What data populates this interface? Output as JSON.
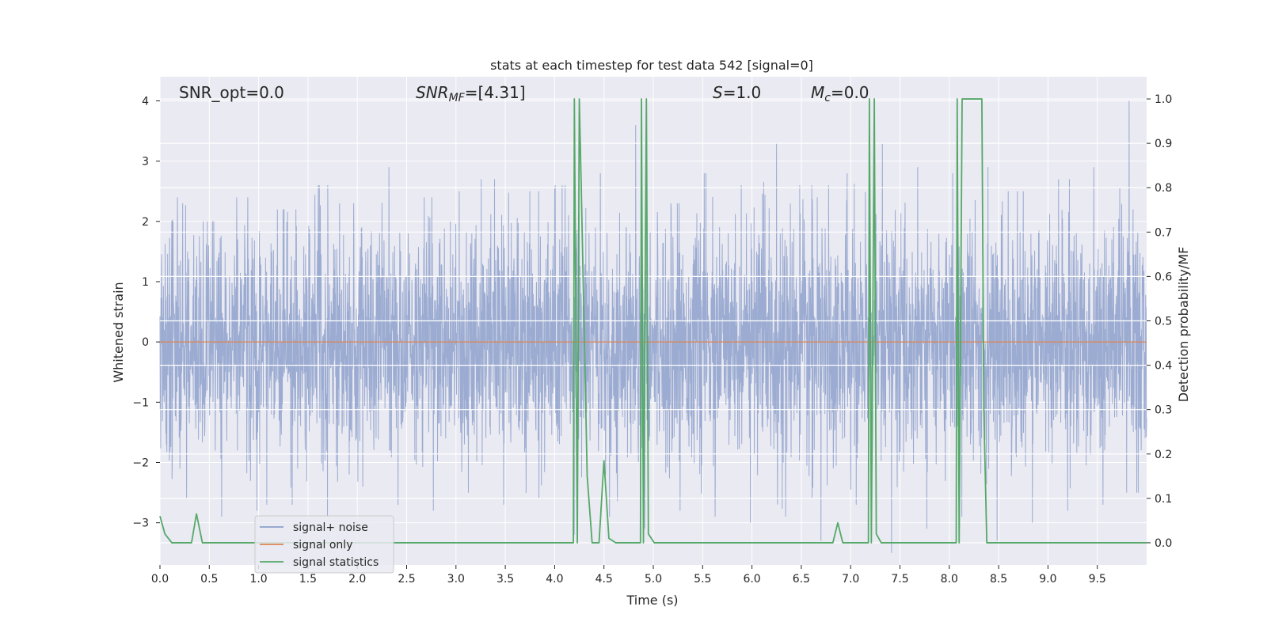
{
  "chart_data": {
    "type": "line",
    "title": "stats at each timestep for test data 542 [signal=0]",
    "xlabel": "Time (s)",
    "ylabel": "Whitened strain",
    "y2label": "Detection probability/MF",
    "xlim": [
      0,
      10
    ],
    "ylim": [
      -3.7,
      4.4
    ],
    "y2lim": [
      -0.05,
      1.05
    ],
    "xticks": [
      "0.0",
      "0.5",
      "1.0",
      "1.5",
      "2.0",
      "2.5",
      "3.0",
      "3.5",
      "4.0",
      "4.5",
      "5.0",
      "5.5",
      "6.0",
      "6.5",
      "7.0",
      "7.5",
      "8.0",
      "8.5",
      "9.0",
      "9.5"
    ],
    "yticks": [
      "−3",
      "−2",
      "−1",
      "0",
      "1",
      "2",
      "3",
      "4"
    ],
    "y2ticks": [
      "0.0",
      "0.1",
      "0.2",
      "0.3",
      "0.4",
      "0.5",
      "0.6",
      "0.7",
      "0.8",
      "0.9",
      "1.0"
    ],
    "grid": true,
    "legend_position": "lower-left",
    "annotations": {
      "snr_opt": "SNR_opt=0.0",
      "snr_mf_main": "SNR",
      "snr_mf_sub": "MF",
      "snr_mf_val": "=[4.31]",
      "s_main": "S",
      "s_val": "=1.0",
      "mc_main": "M",
      "mc_sub": "c",
      "mc_val": "=0.0"
    },
    "series": [
      {
        "name": "signal+ noise",
        "color": "#8da0cb",
        "axis": "left",
        "noise_std": 1.0,
        "peak_max": [
          2.4,
          2.0,
          2.4,
          2.2,
          2.6,
          2.3,
          2.9,
          2.4,
          2.5,
          2.7,
          2.5,
          2.6,
          2.8,
          3.6,
          2.3,
          2.8,
          2.6,
          3.3,
          2.6,
          2.8,
          3.3,
          2.9,
          2.8,
          2.9,
          2.5,
          2.7,
          2.9,
          4.0
        ],
        "trough_min": [
          -2.6,
          -2.9,
          -2.8,
          -2.7,
          -2.9,
          -2.4,
          -2.7,
          -2.8,
          -2.5,
          -2.7,
          -2.6,
          -3.2,
          -2.9,
          -3.1,
          -2.8,
          -2.9,
          -3.0,
          -2.9,
          -3.3,
          -2.7,
          -3.5,
          -3.1,
          -2.9,
          -3.3,
          -3.0,
          -2.8,
          -2.7,
          -2.5
        ]
      },
      {
        "name": "signal only",
        "color": "#dd8452",
        "axis": "left",
        "x": [
          0,
          10
        ],
        "y": [
          0,
          0
        ]
      },
      {
        "name": "signal statistics",
        "color": "#55a868",
        "axis": "right",
        "x": [
          0.0,
          0.05,
          0.12,
          0.32,
          0.37,
          0.43,
          4.19,
          4.2,
          4.23,
          4.25,
          4.27,
          4.33,
          4.38,
          4.45,
          4.5,
          4.55,
          4.62,
          4.87,
          4.88,
          4.9,
          4.93,
          4.95,
          5.01,
          5.06,
          6.82,
          6.87,
          6.92,
          7.18,
          7.19,
          7.21,
          7.24,
          7.26,
          7.31,
          7.34,
          8.07,
          8.08,
          8.1,
          8.13,
          8.33,
          8.35,
          8.38,
          10.0
        ],
        "y": [
          0.06,
          0.02,
          0.0,
          0.0,
          0.065,
          0.0,
          0.0,
          1.0,
          0.0,
          1.0,
          0.8,
          0.15,
          0.0,
          0.0,
          0.185,
          0.01,
          0.0,
          0.0,
          1.0,
          0.0,
          1.0,
          0.02,
          0.0,
          0.0,
          0.0,
          0.045,
          0.0,
          0.0,
          1.0,
          0.0,
          1.0,
          0.02,
          0.0,
          0.0,
          0.0,
          1.0,
          0.0,
          1.0,
          1.0,
          0.3,
          0.0,
          0.0
        ]
      }
    ]
  }
}
